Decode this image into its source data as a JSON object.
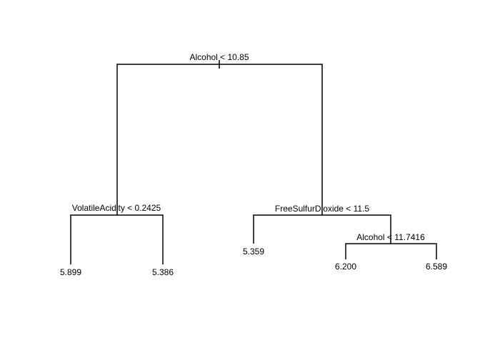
{
  "tree": {
    "nodes": {
      "root_split": "Alcohol < 10.85",
      "left_split": "VolatileAcidity < 0.2425",
      "right_split": "FreeSulfurDioxide < 11.5",
      "right_right_split": "Alcohol < 11.7416"
    },
    "leaves": {
      "left_left": "5.899",
      "left_right": "5.386",
      "right_left": "5.359",
      "right_right_left": "6.200",
      "right_right_right": "6.589"
    }
  },
  "colors": {
    "line": "#000000",
    "background": "#ffffff"
  }
}
